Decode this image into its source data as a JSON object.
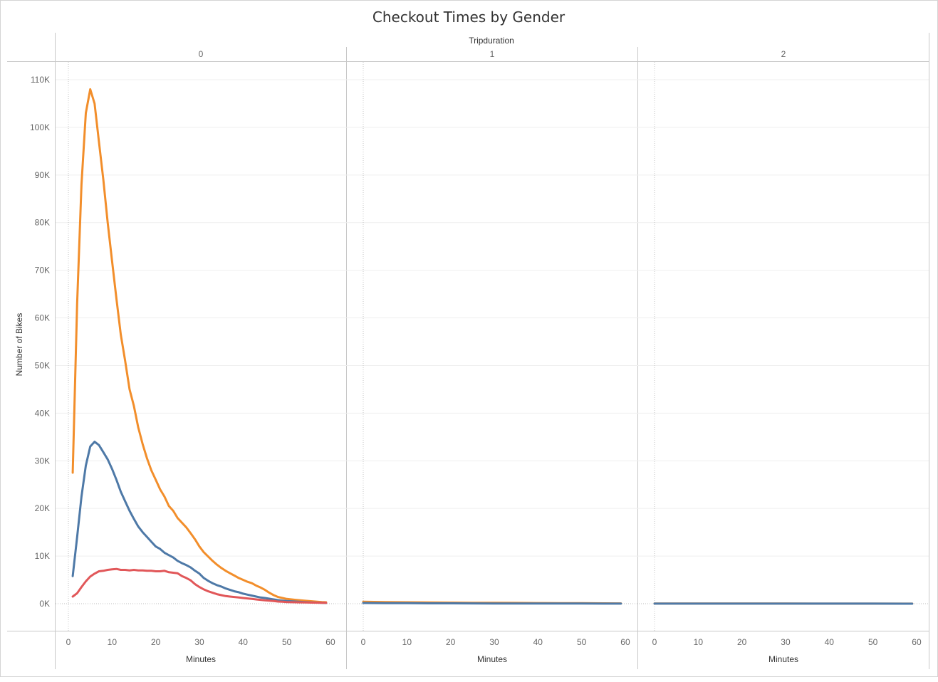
{
  "chart_data": {
    "type": "line",
    "title": "Checkout Times by Gender",
    "column_header": "Tripduration",
    "ylabel": "Number of Bikes",
    "xlabel": "Minutes",
    "ylim": [
      0,
      110000
    ],
    "y_ticks": [
      0,
      10000,
      20000,
      30000,
      40000,
      50000,
      60000,
      70000,
      80000,
      90000,
      100000,
      110000
    ],
    "y_tick_labels": [
      "0K",
      "10K",
      "20K",
      "30K",
      "40K",
      "50K",
      "60K",
      "70K",
      "80K",
      "90K",
      "100K",
      "110K"
    ],
    "x_ticks": [
      0,
      10,
      20,
      30,
      40,
      50,
      60
    ],
    "x_tick_labels": [
      "0",
      "10",
      "20",
      "30",
      "40",
      "50",
      "60"
    ],
    "xlim": [
      -2,
      62
    ],
    "grid": true,
    "colors": {
      "orange": "#f28e2b",
      "blue": "#4e79a7",
      "red": "#e15759"
    },
    "panels": [
      {
        "label": "0",
        "series": [
          {
            "color": "#f28e2b",
            "x": [
              1,
              2,
              3,
              4,
              5,
              6,
              7,
              8,
              9,
              10,
              11,
              12,
              13,
              14,
              15,
              16,
              17,
              18,
              19,
              20,
              21,
              22,
              23,
              24,
              25,
              26,
              27,
              28,
              29,
              30,
              31,
              32,
              33,
              34,
              35,
              36,
              37,
              38,
              39,
              40,
              41,
              42,
              43,
              44,
              45,
              46,
              47,
              48,
              49,
              50,
              52,
              54,
              56,
              58,
              59
            ],
            "y": [
              27500,
              63000,
              88000,
              103000,
              108000,
              105000,
              97000,
              89000,
              80000,
              72000,
              64000,
              56500,
              51000,
              45000,
              41500,
              37000,
              33500,
              30500,
              28000,
              26000,
              24000,
              22500,
              20500,
              19500,
              18000,
              17000,
              16000,
              14800,
              13500,
              12000,
              10800,
              9900,
              9000,
              8200,
              7500,
              6900,
              6400,
              5900,
              5400,
              5000,
              4600,
              4300,
              3800,
              3400,
              2900,
              2300,
              1800,
              1400,
              1200,
              1000,
              800,
              650,
              500,
              350,
              300
            ]
          },
          {
            "color": "#4e79a7",
            "x": [
              1,
              2,
              3,
              4,
              5,
              6,
              7,
              8,
              9,
              10,
              11,
              12,
              13,
              14,
              15,
              16,
              17,
              18,
              19,
              20,
              21,
              22,
              23,
              24,
              25,
              26,
              27,
              28,
              29,
              30,
              31,
              32,
              33,
              34,
              35,
              36,
              37,
              38,
              39,
              40,
              41,
              42,
              43,
              44,
              45,
              46,
              47,
              48,
              49,
              50,
              52,
              54,
              56,
              58,
              59
            ],
            "y": [
              5800,
              14000,
              22500,
              29000,
              33000,
              34000,
              33300,
              31800,
              30300,
              28300,
              26000,
              23500,
              21500,
              19500,
              17800,
              16200,
              15000,
              14000,
              13000,
              12000,
              11500,
              10700,
              10200,
              9700,
              9000,
              8500,
              8100,
              7600,
              6900,
              6300,
              5400,
              4800,
              4300,
              3900,
              3600,
              3200,
              2900,
              2600,
              2400,
              2100,
              1900,
              1700,
              1500,
              1300,
              1200,
              1050,
              900,
              750,
              650,
              550,
              450,
              350,
              250,
              200,
              150
            ]
          },
          {
            "color": "#e15759",
            "x": [
              1,
              2,
              3,
              4,
              5,
              6,
              7,
              8,
              9,
              10,
              11,
              12,
              13,
              14,
              15,
              16,
              17,
              18,
              19,
              20,
              21,
              22,
              23,
              24,
              25,
              26,
              27,
              28,
              29,
              30,
              31,
              32,
              33,
              34,
              35,
              36,
              37,
              38,
              39,
              40,
              41,
              42,
              43,
              44,
              45,
              46,
              47,
              48,
              49,
              50,
              52,
              54,
              56,
              58,
              59
            ],
            "y": [
              1500,
              2200,
              3500,
              4700,
              5700,
              6300,
              6800,
              6900,
              7100,
              7200,
              7300,
              7100,
              7100,
              7000,
              7100,
              7000,
              7000,
              6900,
              6900,
              6800,
              6800,
              6900,
              6600,
              6500,
              6400,
              5800,
              5400,
              4900,
              4100,
              3500,
              3000,
              2600,
              2300,
              2000,
              1800,
              1600,
              1500,
              1400,
              1300,
              1200,
              1100,
              1000,
              900,
              800,
              700,
              650,
              550,
              450,
              400,
              350,
              300,
              250,
              220,
              200,
              180
            ]
          }
        ]
      },
      {
        "label": "1",
        "series": [
          {
            "color": "#f28e2b",
            "x": [
              0,
              5,
              10,
              15,
              20,
              25,
              30,
              35,
              40,
              45,
              50,
              55,
              59
            ],
            "y": [
              400,
              350,
              300,
              250,
              220,
              200,
              180,
              160,
              140,
              120,
              100,
              80,
              60
            ]
          },
          {
            "color": "#4e79a7",
            "x": [
              0,
              5,
              10,
              15,
              20,
              25,
              30,
              35,
              40,
              45,
              50,
              55,
              59
            ],
            "y": [
              150,
              120,
              100,
              80,
              70,
              60,
              50,
              40,
              35,
              30,
              25,
              20,
              15
            ]
          }
        ]
      },
      {
        "label": "2",
        "series": [
          {
            "color": "#f28e2b",
            "x": [
              0,
              10,
              20,
              30,
              40,
              50,
              59
            ],
            "y": [
              40,
              35,
              30,
              25,
              20,
              15,
              10
            ]
          },
          {
            "color": "#4e79a7",
            "x": [
              0,
              10,
              20,
              30,
              40,
              50,
              59
            ],
            "y": [
              20,
              18,
              15,
              12,
              10,
              8,
              5
            ]
          }
        ]
      }
    ]
  }
}
